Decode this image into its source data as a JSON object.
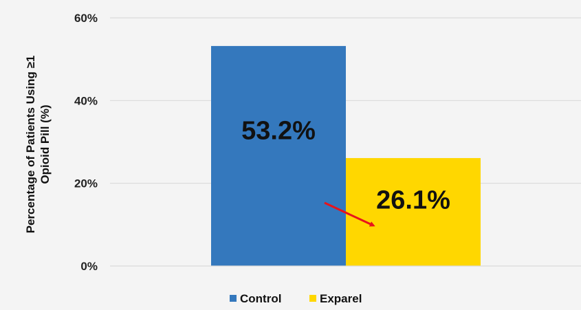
{
  "chart_data": {
    "type": "bar",
    "title": "",
    "xlabel": "",
    "ylabel_lines": [
      "Percentage of Patients Using ≥1",
      "Opioid Pill (%)"
    ],
    "ylim": [
      0,
      60
    ],
    "yticks": [
      0,
      20,
      40,
      60
    ],
    "ytick_labels": [
      "0%",
      "20%",
      "40%",
      "60%"
    ],
    "grid": true,
    "legend_position": "bottom-center",
    "series": [
      {
        "name": "Control",
        "value": 53.2,
        "label": "53.2%",
        "color": "#3478bd"
      },
      {
        "name": "Exparel",
        "value": 26.1,
        "label": "26.1%",
        "color": "#ffd700"
      }
    ],
    "annotation": {
      "type": "arrow",
      "color": "#e8141b"
    }
  }
}
